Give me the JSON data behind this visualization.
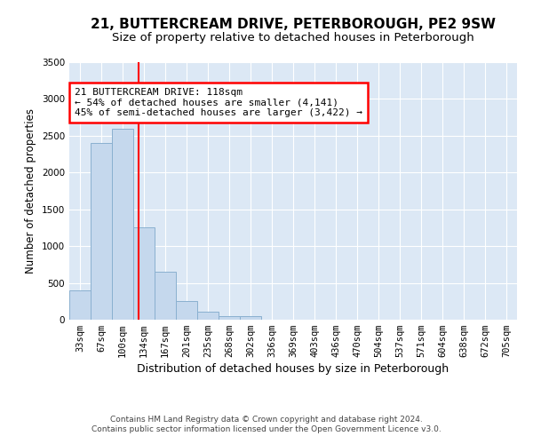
{
  "title1": "21, BUTTERCREAM DRIVE, PETERBOROUGH, PE2 9SW",
  "title2": "Size of property relative to detached houses in Peterborough",
  "xlabel": "Distribution of detached houses by size in Peterborough",
  "ylabel": "Number of detached properties",
  "categories": [
    "33sqm",
    "67sqm",
    "100sqm",
    "134sqm",
    "167sqm",
    "201sqm",
    "235sqm",
    "268sqm",
    "302sqm",
    "336sqm",
    "369sqm",
    "403sqm",
    "436sqm",
    "470sqm",
    "504sqm",
    "537sqm",
    "571sqm",
    "604sqm",
    "638sqm",
    "672sqm",
    "705sqm"
  ],
  "values": [
    400,
    2400,
    2600,
    1250,
    650,
    255,
    105,
    50,
    45,
    5,
    5,
    0,
    0,
    0,
    0,
    0,
    0,
    0,
    0,
    0,
    0
  ],
  "bar_color": "#c5d8ed",
  "bar_edge_color": "#8ab0d0",
  "red_line_x": 2.75,
  "annotation_text": "21 BUTTERCREAM DRIVE: 118sqm\n← 54% of detached houses are smaller (4,141)\n45% of semi-detached houses are larger (3,422) →",
  "annotation_box_facecolor": "white",
  "annotation_box_edgecolor": "red",
  "ylim": [
    0,
    3500
  ],
  "yticks": [
    0,
    500,
    1000,
    1500,
    2000,
    2500,
    3000,
    3500
  ],
  "bg_color": "#ffffff",
  "plot_bg_color": "#dce8f5",
  "grid_color": "#ffffff",
  "footer": "Contains HM Land Registry data © Crown copyright and database right 2024.\nContains public sector information licensed under the Open Government Licence v3.0.",
  "title1_fontsize": 11,
  "title2_fontsize": 9.5,
  "xlabel_fontsize": 9,
  "ylabel_fontsize": 8.5,
  "annot_fontsize": 8,
  "tick_fontsize": 7.5,
  "footer_fontsize": 6.5
}
